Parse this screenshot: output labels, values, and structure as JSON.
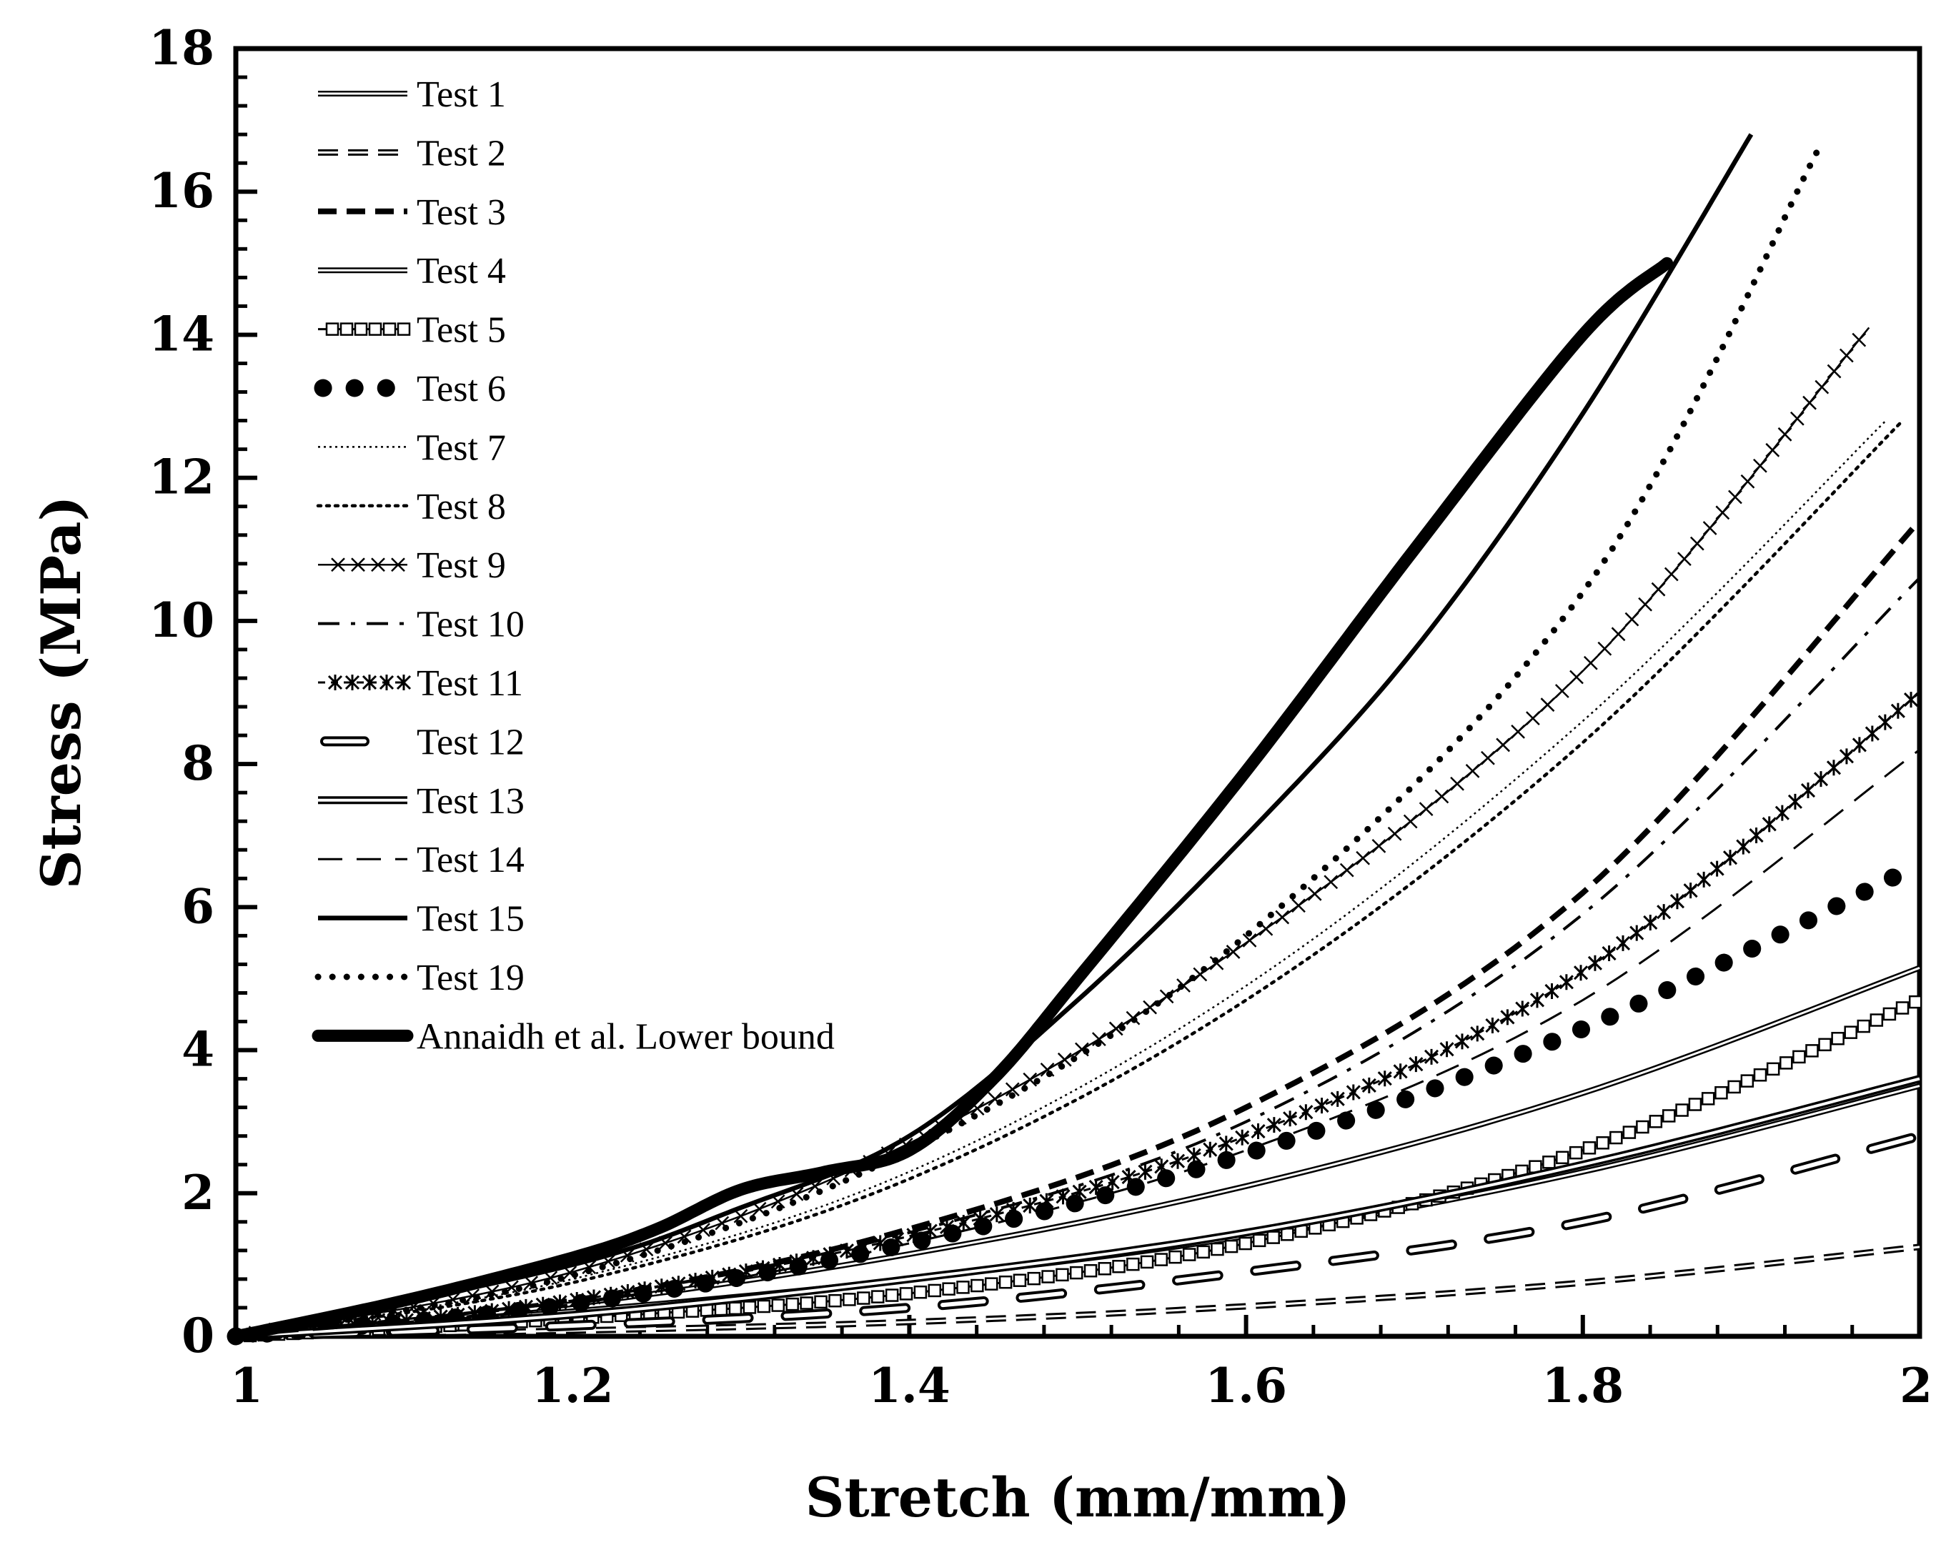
{
  "chart_data": {
    "type": "line",
    "title": "",
    "xlabel": "Stretch (mm/mm)",
    "ylabel": "Stress (MPa)",
    "xlim": [
      1,
      2
    ],
    "ylim": [
      0,
      18
    ],
    "x_ticks": [
      1,
      1.2,
      1.4,
      1.6,
      1.8,
      2
    ],
    "x_tick_labels": [
      "1",
      "1.2",
      "1.4",
      "1.6",
      "1.8",
      "2"
    ],
    "y_ticks": [
      0,
      2,
      4,
      6,
      8,
      10,
      12,
      14,
      16,
      18
    ],
    "y_tick_labels": [
      "0",
      "2",
      "4",
      "6",
      "8",
      "10",
      "12",
      "14",
      "16",
      "18"
    ],
    "grid": false,
    "legend_position": "top-left",
    "series": [
      {
        "name": "Test 1",
        "style": "double",
        "x": [
          1,
          1.2,
          1.4,
          1.6,
          1.8,
          2
        ],
        "y": [
          0,
          0.35,
          0.8,
          1.4,
          2.3,
          3.5
        ]
      },
      {
        "name": "Test 2",
        "style": "dash-double",
        "x": [
          1,
          1.2,
          1.4,
          1.6,
          1.8,
          2
        ],
        "y": [
          0,
          0.08,
          0.2,
          0.42,
          0.75,
          1.25
        ]
      },
      {
        "name": "Test 3",
        "style": "dash-bold",
        "x": [
          1,
          1.2,
          1.4,
          1.6,
          1.8,
          2
        ],
        "y": [
          0,
          0.5,
          1.5,
          3.2,
          6.2,
          11.4
        ]
      },
      {
        "name": "Test 4",
        "style": "double",
        "x": [
          1,
          1.2,
          1.4,
          1.6,
          1.8,
          2
        ],
        "y": [
          0,
          0.45,
          1.15,
          2.1,
          3.4,
          5.15
        ]
      },
      {
        "name": "Test 5",
        "style": "square-markers",
        "x": [
          1,
          1.2,
          1.4,
          1.6,
          1.8,
          2
        ],
        "y": [
          0,
          0.25,
          0.6,
          1.3,
          2.6,
          4.7
        ]
      },
      {
        "name": "Test 6",
        "style": "big-dots",
        "x": [
          1,
          1.2,
          1.4,
          1.6,
          1.8,
          2
        ],
        "y": [
          0,
          0.45,
          1.3,
          2.55,
          4.3,
          6.6
        ]
      },
      {
        "name": "Test 7",
        "style": "fine-dotted",
        "x": [
          1,
          1.2,
          1.4,
          1.6,
          1.8,
          1.98
        ],
        "y": [
          0,
          0.8,
          2.3,
          4.9,
          8.6,
          12.8
        ]
      },
      {
        "name": "Test 8",
        "style": "dotted",
        "x": [
          1,
          1.2,
          1.4,
          1.6,
          1.8,
          1.99
        ],
        "y": [
          0,
          0.75,
          2.2,
          4.7,
          8.3,
          12.8
        ]
      },
      {
        "name": "Test 9",
        "style": "x-markers",
        "x": [
          1,
          1.2,
          1.4,
          1.6,
          1.8,
          1.97
        ],
        "y": [
          0,
          0.9,
          2.7,
          5.5,
          9.3,
          14.1
        ]
      },
      {
        "name": "Test 10",
        "style": "dash-dot",
        "x": [
          1,
          1.2,
          1.4,
          1.6,
          1.8,
          2
        ],
        "y": [
          0,
          0.5,
          1.45,
          3.0,
          5.9,
          10.6
        ]
      },
      {
        "name": "Test 11",
        "style": "star-markers",
        "x": [
          1,
          1.2,
          1.4,
          1.6,
          1.8,
          2
        ],
        "y": [
          0,
          0.5,
          1.4,
          2.8,
          5.1,
          9.0
        ]
      },
      {
        "name": "Test 12",
        "style": "long-dash-hollow",
        "x": [
          1,
          1.2,
          1.4,
          1.6,
          1.8,
          2
        ],
        "y": [
          0,
          0.15,
          0.4,
          0.9,
          1.6,
          2.8
        ]
      },
      {
        "name": "Test 13",
        "style": "double-bold",
        "x": [
          1,
          1.2,
          1.4,
          1.6,
          1.8,
          2
        ],
        "y": [
          0,
          0.3,
          0.8,
          1.45,
          2.4,
          3.6
        ]
      },
      {
        "name": "Test 14",
        "style": "long-dash",
        "x": [
          1,
          1.2,
          1.4,
          1.6,
          1.8,
          2
        ],
        "y": [
          0,
          0.45,
          1.3,
          2.6,
          4.7,
          8.2
        ]
      },
      {
        "name": "Test 15",
        "style": "solid-bold",
        "x": [
          1,
          1.2,
          1.3,
          1.4,
          1.5,
          1.6,
          1.7,
          1.8,
          1.9
        ],
        "y": [
          0,
          1.0,
          1.8,
          2.8,
          4.7,
          7.0,
          9.6,
          12.9,
          16.8
        ]
      },
      {
        "name": "Test 19",
        "style": "bold-dotted",
        "x": [
          1,
          1.2,
          1.4,
          1.6,
          1.8,
          1.94
        ],
        "y": [
          0,
          0.85,
          2.6,
          5.6,
          10.4,
          16.6
        ]
      },
      {
        "name": "Annaidh et al. Lower bound",
        "style": "extra-thick",
        "x": [
          1,
          1.1,
          1.2,
          1.25,
          1.3,
          1.35,
          1.4,
          1.45,
          1.5,
          1.6,
          1.7,
          1.8,
          1.85
        ],
        "y": [
          0,
          0.5,
          1.1,
          1.5,
          2.05,
          2.3,
          2.6,
          3.6,
          5.0,
          7.9,
          11.0,
          14.0,
          15.0
        ]
      }
    ]
  }
}
